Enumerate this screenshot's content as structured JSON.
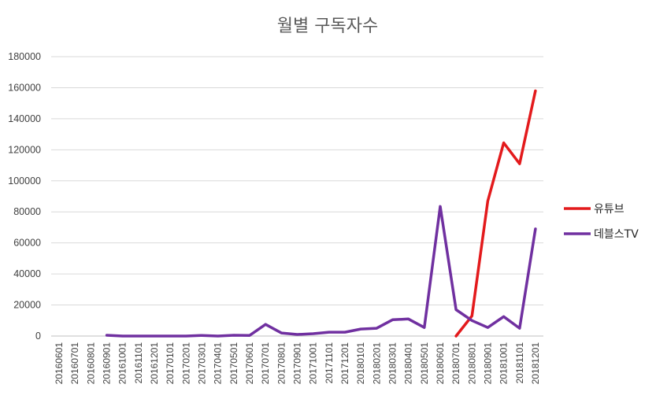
{
  "chart_data": {
    "type": "line",
    "title": "월별 구독자수",
    "xlabel": "",
    "ylabel": "",
    "ylim": [
      0,
      180000
    ],
    "yticks": [
      0,
      20000,
      40000,
      60000,
      80000,
      100000,
      120000,
      140000,
      160000,
      180000
    ],
    "grid": true,
    "legend_position": "right",
    "categories": [
      "20160601",
      "20160701",
      "20160801",
      "20160901",
      "20161001",
      "20161101",
      "20161201",
      "20170101",
      "20170201",
      "20170301",
      "20170401",
      "20170501",
      "20170601",
      "20170701",
      "20170801",
      "20170901",
      "20171001",
      "20171101",
      "20171201",
      "20180101",
      "20180201",
      "20180301",
      "20180401",
      "20180501",
      "20180601",
      "20180701",
      "20180801",
      "20180901",
      "20181001",
      "20181101",
      "20181201"
    ],
    "series": [
      {
        "name": "유튜브",
        "color": "#e31a1c",
        "values": [
          null,
          null,
          null,
          null,
          null,
          null,
          null,
          null,
          null,
          null,
          null,
          null,
          null,
          null,
          null,
          null,
          null,
          null,
          null,
          null,
          null,
          null,
          null,
          null,
          null,
          0,
          13000,
          87000,
          124500,
          111000,
          158000
        ]
      },
      {
        "name": "데블스TV",
        "color": "#7030a0",
        "values": [
          null,
          null,
          null,
          500,
          0,
          0,
          0,
          0,
          0,
          400,
          0,
          500,
          400,
          7500,
          2000,
          1000,
          1500,
          2500,
          2500,
          4500,
          5000,
          10500,
          11000,
          5500,
          83500,
          17000,
          10000,
          5500,
          12500,
          5000,
          69000
        ]
      }
    ]
  }
}
